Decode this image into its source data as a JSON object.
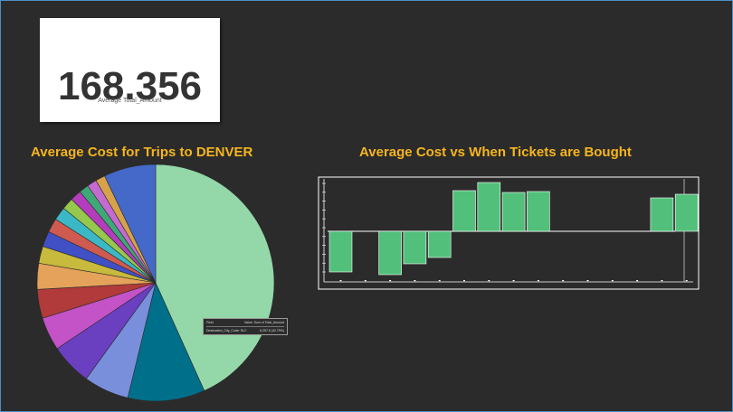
{
  "kpi": {
    "value": "168.356",
    "label": "Average Total_Amount"
  },
  "titles": {
    "pie": "Average Cost for Trips to DENVER",
    "bar": "Average Cost vs When Tickets are Bought"
  },
  "tooltip": {
    "head_field": "Field",
    "head_value": "Value: Sum of Total_Amount",
    "row_field": "Destination_City_Code: SLC",
    "row_value": "6,257.6 (42.79%)"
  },
  "chart_data": [
    {
      "type": "pie",
      "title": "Average Cost for Trips to DENVER",
      "slices": [
        {
          "label": "SLC",
          "value": 42.79,
          "color": "#94d8a9"
        },
        {
          "value": 10.4,
          "color": "#006f8a"
        },
        {
          "value": 6.1,
          "color": "#7a8fdc"
        },
        {
          "value": 5.6,
          "color": "#6a3fc0"
        },
        {
          "value": 4.5,
          "color": "#c353c6"
        },
        {
          "value": 3.9,
          "color": "#b13a3a"
        },
        {
          "value": 3.5,
          "color": "#e4a25a"
        },
        {
          "value": 2.3,
          "color": "#c7ba3c"
        },
        {
          "value": 2.1,
          "color": "#4150c4"
        },
        {
          "value": 1.9,
          "color": "#cf5a50"
        },
        {
          "value": 1.8,
          "color": "#3bb8c6"
        },
        {
          "value": 1.6,
          "color": "#96c84d"
        },
        {
          "value": 1.5,
          "color": "#b33dbd"
        },
        {
          "value": 1.3,
          "color": "#3fa877"
        },
        {
          "value": 1.3,
          "color": "#c46ad0"
        },
        {
          "value": 1.3,
          "color": "#d6a24a"
        },
        {
          "value": 7.0,
          "color": "#4569c9"
        }
      ]
    },
    {
      "type": "bar",
      "title": "Average Cost vs When Tickets are Bought",
      "bar_color": "#52c07a",
      "values": [
        -45,
        0,
        -48,
        -36,
        -29,
        45,
        54,
        43,
        44,
        0,
        0,
        0,
        0,
        37,
        41
      ]
    }
  ]
}
